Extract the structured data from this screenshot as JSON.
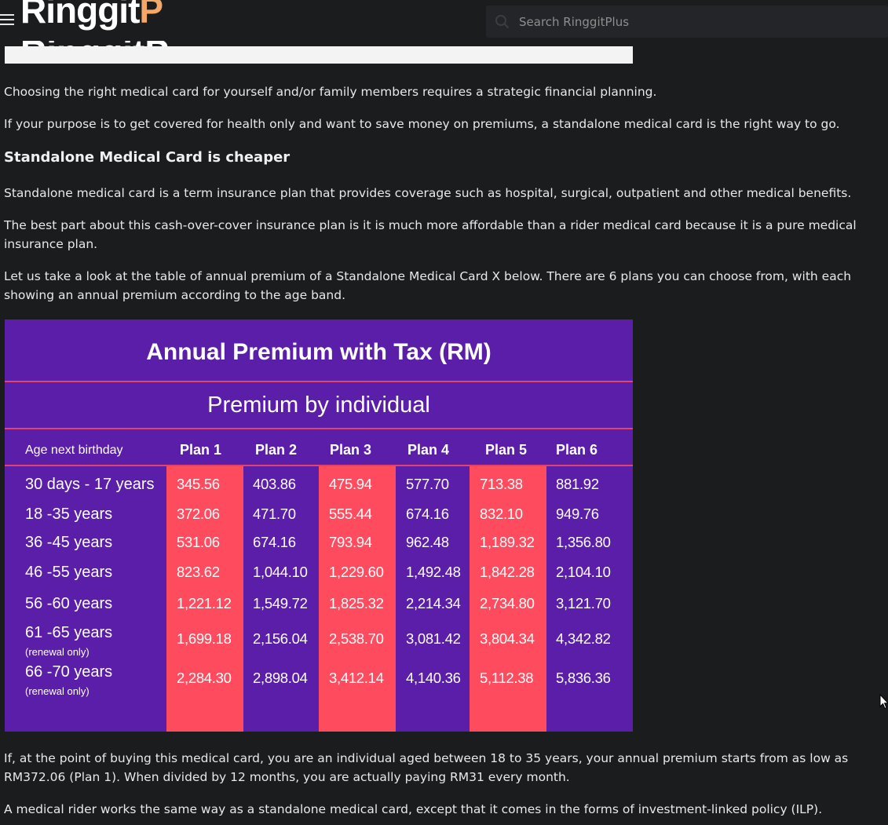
{
  "header": {
    "logo_text": "Ringgit",
    "logo_accent": "P",
    "logo_ghost_text": "RinggitP",
    "search_placeholder": "Search RinggitPlus",
    "icons": {
      "menu": "hamburger-menu-icon",
      "search": "search-icon"
    }
  },
  "article": {
    "p1": "Choosing the right medical card for yourself and/or family members requires a strategic financial planning.",
    "p2": "If your purpose is to get covered for health only and want to save money on premiums, a standalone medical card is the right way to go.",
    "heading": "Standalone Medical Card is cheaper",
    "p3": "Standalone medical card is a term insurance plan that provides coverage such as hospital, surgical, outpatient and other medical benefits.",
    "p4": "The best part about this cash-over-cover insurance plan is it is much more affordable than a rider medical card because it is a pure medical insurance plan.",
    "p5": "Let us take a look at the table of annual premium of a Standalone Medical Card X below. There are 6 plans you can choose from, with each showing an annual premium according to the age band.",
    "p6": "If, at the point of buying this medical card, you are an individual aged between 18 to 35 years, your annual premium starts from as low as RM372.06 (Plan 1). When divided by 12 months, you are actually paying RM31 every month.",
    "p7": "A medical rider works the same way as a standalone medical card, except that it comes in the forms of investment-linked policy (ILP)."
  },
  "premium_table": {
    "title": "Annual Premium with Tax (RM)",
    "subtitle": "Premium by individual",
    "age_header": "Age next birthday",
    "plans": [
      "Plan 1",
      "Plan 2",
      "Plan 3",
      "Plan 4",
      "Plan 5",
      "Plan 6"
    ],
    "rows": [
      {
        "age": "30 days - 17 years",
        "note": "",
        "values": [
          "345.56",
          "403.86",
          "475.94",
          "577.70",
          "713.38",
          "881.92"
        ]
      },
      {
        "age": "18 -35 years",
        "note": "",
        "values": [
          "372.06",
          "471.70",
          "555.44",
          "674.16",
          "832.10",
          "949.76"
        ]
      },
      {
        "age": "36 -45 years",
        "note": "",
        "values": [
          "531.06",
          "674.16",
          "793.94",
          "962.48",
          "1,189.32",
          "1,356.80"
        ]
      },
      {
        "age": "46 -55 years",
        "note": "",
        "values": [
          "823.62",
          "1,044.10",
          "1,229.60",
          "1,492.48",
          "1,842.28",
          "2,104.10"
        ]
      },
      {
        "age": "56 -60 years",
        "note": "",
        "values": [
          "1,221.12",
          "1,549.72",
          "1,825.32",
          "2,214.34",
          "2,734.80",
          "3,121.70"
        ]
      },
      {
        "age": "61 -65 years",
        "note": "(renewal only)",
        "values": [
          "1,699.18",
          "2,156.04",
          "2,538.70",
          "3,081.42",
          "3,804.34",
          "4,342.82"
        ]
      },
      {
        "age": "66 -70 years",
        "note": "(renewal only)",
        "values": [
          "2,284.30",
          "2,898.04",
          "3,412.14",
          "4,140.36",
          "5,112.38",
          "5,836.36"
        ]
      }
    ],
    "colors": {
      "background": "#5a1ea8",
      "highlight": "#ff4b5e",
      "divider": "#e0446e"
    }
  }
}
